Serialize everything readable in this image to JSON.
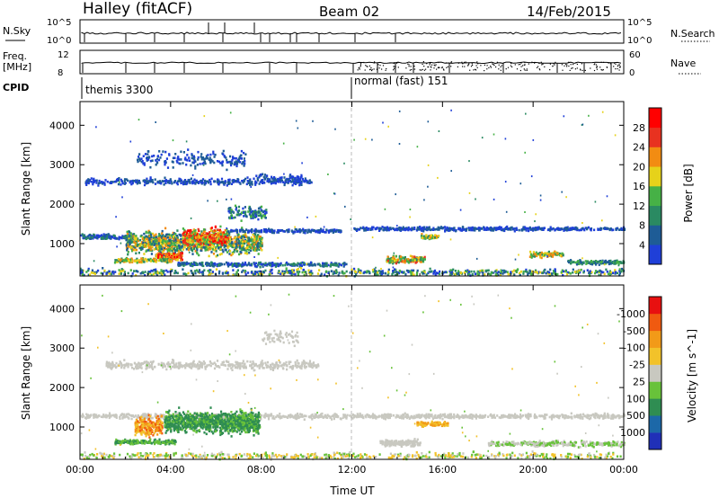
{
  "header": {
    "title": "Halley (fitACF)",
    "beam": "Beam 02",
    "date": "14/Feb/2015"
  },
  "strip_nsky": {
    "left_label": "N.Sky",
    "left_ticks": [
      "10^5",
      "10^0"
    ],
    "right_label": "N.Search",
    "right_ticks": [
      "10^5",
      "10^0"
    ]
  },
  "strip_freq": {
    "left_label_line1": "Freq.",
    "left_label_line2": "[MHz]",
    "left_ticks": [
      "12",
      "8"
    ],
    "right_label": "Nave",
    "right_ticks": [
      "60",
      "0"
    ]
  },
  "cpid": {
    "label": "CPID",
    "modes": [
      {
        "name": "themis 3300",
        "start_hour": 0
      },
      {
        "name": "normal (fast) 151",
        "start_hour": 12
      }
    ]
  },
  "chart_data": [
    {
      "type": "heatmap",
      "title": "",
      "ylabel": "Slant Range [km]",
      "xlabel": "",
      "x_range_hours": [
        0,
        24
      ],
      "ylim": [
        180,
        4600
      ],
      "y_ticks": [
        1000,
        2000,
        3000,
        4000
      ],
      "colorbar": {
        "label": "Power [dB]",
        "ticks": [
          "4",
          "8",
          "12",
          "16",
          "20",
          "24",
          "28"
        ],
        "colors": [
          "#1f3fd8",
          "#1e5c96",
          "#2a8a62",
          "#46b146",
          "#e6d21a",
          "#f28c12",
          "#e83220",
          "#ff0000"
        ]
      }
    },
    {
      "type": "heatmap",
      "title": "",
      "ylabel": "Slant Range [km]",
      "xlabel": "Time UT",
      "x_range_hours": [
        0,
        24
      ],
      "x_ticks": [
        "00:00",
        "04:00",
        "08:00",
        "12:00",
        "16:00",
        "20:00",
        "00:00"
      ],
      "ylim": [
        180,
        4600
      ],
      "y_ticks": [
        1000,
        2000,
        3000,
        4000
      ],
      "colorbar": {
        "label": "Velocity [m s^-1]",
        "ticks": [
          "1000",
          "500",
          "100",
          "25",
          "-25",
          "-100",
          "-500",
          "-1000"
        ],
        "colors": [
          "#2030b8",
          "#1c68a8",
          "#2f8d52",
          "#68c23a",
          "#c8c8c0",
          "#f2c22a",
          "#f29a18",
          "#f05a10",
          "#e81010"
        ]
      }
    }
  ]
}
